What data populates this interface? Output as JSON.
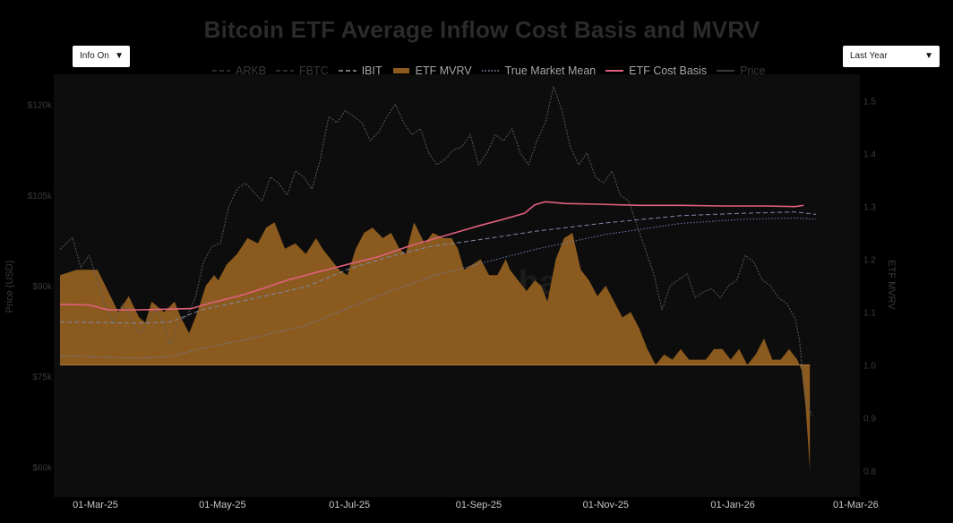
{
  "controls": {
    "info_label": "Info On",
    "range_label": "Last Year",
    "arrow": "▼"
  },
  "watermark": "checkonchain",
  "colors": {
    "mvrv_fill": "#8b5a1f",
    "cost_basis": "#e0607e",
    "true_market_mean": "#6b7fb0",
    "price": "#5a5a5a",
    "ibit": "#7e8aa8",
    "fbtc": "#444a58",
    "arkb": "#3a3e48",
    "plot_bg": "#0d0d0d",
    "tick": "#3a3a3a"
  },
  "chart_data": {
    "type": "line",
    "title": "Bitcoin ETF Average Inflow Cost Basis and MVRV",
    "x_ticks": [
      "01-Mar-25",
      "01-May-25",
      "01-Jul-25",
      "01-Sep-25",
      "01-Nov-25",
      "01-Jan-26",
      "01-Mar-26"
    ],
    "x_tick_days": [
      59,
      120,
      181,
      243,
      304,
      365,
      424
    ],
    "x_range_days": [
      39,
      426
    ],
    "y_left": {
      "label": "Price (USD)",
      "range": [
        55000,
        125000
      ],
      "ticks": [
        60000,
        75000,
        90000,
        105000,
        120000
      ],
      "tick_labels": [
        "$60k",
        "$75k",
        "$90k",
        "$105k",
        "$120k"
      ]
    },
    "y_right": {
      "label": "ETF MVRV",
      "range": [
        0.75,
        1.55
      ],
      "ticks": [
        0.8,
        0.9,
        1.0,
        1.1,
        1.2,
        1.3,
        1.4,
        1.5
      ]
    },
    "series": [
      {
        "name": "ARKB",
        "style": "dash"
      },
      {
        "name": "FBTC",
        "style": "dash"
      },
      {
        "name": "IBIT",
        "style": "dash",
        "x": [
          42,
          80,
          95,
          110,
          130,
          160,
          181,
          200,
          220,
          243,
          270,
          304,
          340,
          370,
          395,
          405
        ],
        "y": [
          84000,
          83800,
          84000,
          86000,
          87500,
          89800,
          92800,
          94800,
          96500,
          97600,
          99000,
          100400,
          101600,
          102000,
          102200,
          101800
        ]
      },
      {
        "name": "ETF MVRV",
        "style": "area",
        "x": [
          42,
          50,
          55,
          60,
          65,
          70,
          75,
          80,
          83,
          86,
          92,
          97,
          100,
          104,
          108,
          112,
          116,
          118,
          122,
          127,
          132,
          137,
          141,
          145,
          150,
          155,
          160,
          165,
          168,
          172,
          176,
          180,
          184,
          188,
          192,
          197,
          201,
          205,
          208,
          212,
          217,
          221,
          226,
          230,
          233,
          236,
          240,
          244,
          248,
          252,
          256,
          258,
          262,
          266,
          270,
          273,
          276,
          280,
          284,
          288,
          292,
          296,
          300,
          304,
          308,
          312,
          316,
          320,
          324,
          328,
          332,
          336,
          340,
          344,
          348,
          352,
          356,
          360,
          364,
          368,
          372,
          376,
          380,
          384,
          388,
          392,
          396,
          398,
          400,
          401,
          402
        ],
        "y": [
          1.17,
          1.18,
          1.18,
          1.18,
          1.14,
          1.1,
          1.13,
          1.09,
          1.08,
          1.12,
          1.1,
          1.12,
          1.09,
          1.06,
          1.1,
          1.15,
          1.17,
          1.16,
          1.19,
          1.21,
          1.24,
          1.23,
          1.26,
          1.27,
          1.22,
          1.23,
          1.21,
          1.24,
          1.22,
          1.2,
          1.18,
          1.17,
          1.22,
          1.25,
          1.26,
          1.24,
          1.25,
          1.22,
          1.21,
          1.27,
          1.23,
          1.25,
          1.24,
          1.24,
          1.22,
          1.18,
          1.19,
          1.2,
          1.17,
          1.17,
          1.2,
          1.18,
          1.16,
          1.14,
          1.16,
          1.15,
          1.12,
          1.2,
          1.24,
          1.25,
          1.18,
          1.16,
          1.13,
          1.15,
          1.12,
          1.09,
          1.1,
          1.07,
          1.03,
          1.0,
          1.02,
          1.01,
          1.03,
          1.01,
          1.01,
          1.01,
          1.03,
          1.03,
          1.01,
          1.03,
          1.0,
          1.02,
          1.05,
          1.01,
          1.01,
          1.03,
          1.01,
          0.99,
          0.92,
          0.86,
          0.8
        ]
      },
      {
        "name": "True Market Mean",
        "style": "dot",
        "x": [
          42,
          80,
          95,
          110,
          130,
          160,
          181,
          200,
          220,
          243,
          270,
          304,
          340,
          370,
          395,
          405
        ],
        "y": [
          78400,
          78000,
          78300,
          79600,
          81000,
          83400,
          86400,
          89000,
          91500,
          93600,
          96000,
          98500,
          100300,
          101000,
          101200,
          101000
        ]
      },
      {
        "name": "ETF Cost Basis",
        "style": "solid",
        "x": [
          42,
          56,
          65,
          80,
          92,
          105,
          115,
          128,
          140,
          152,
          165,
          181,
          195,
          210,
          228,
          243,
          255,
          265,
          270,
          275,
          285,
          300,
          320,
          340,
          360,
          380,
          395,
          399
        ],
        "y": [
          86900,
          86800,
          86000,
          86000,
          86100,
          86200,
          87200,
          88300,
          89600,
          91000,
          92200,
          93600,
          94800,
          96600,
          98400,
          99900,
          101000,
          102000,
          103400,
          103900,
          103600,
          103500,
          103300,
          103300,
          103200,
          103200,
          103100,
          103300
        ]
      },
      {
        "name": "Price",
        "style": "solid",
        "x": [
          42,
          48,
          52,
          56,
          60,
          64,
          68,
          72,
          76,
          80,
          84,
          88,
          92,
          95,
          99,
          103,
          107,
          111,
          115,
          119,
          123,
          127,
          131,
          135,
          139,
          143,
          147,
          151,
          155,
          159,
          163,
          167,
          171,
          175,
          179,
          183,
          187,
          191,
          195,
          199,
          203,
          207,
          211,
          215,
          219,
          223,
          227,
          231,
          235,
          239,
          243,
          247,
          251,
          255,
          259,
          263,
          267,
          271,
          275,
          279,
          283,
          287,
          291,
          295,
          299,
          303,
          307,
          311,
          315,
          319,
          323,
          327,
          331,
          335,
          339,
          343,
          347,
          351,
          355,
          359,
          363,
          367,
          371,
          375,
          379,
          383,
          387,
          391,
          395,
          397,
          399,
          401,
          403
        ],
        "y": [
          96000,
          98000,
          93000,
          95000,
          91000,
          86000,
          84000,
          87000,
          84500,
          82000,
          84000,
          86000,
          83500,
          80000,
          84000,
          85000,
          88000,
          94000,
          96500,
          97000,
          103000,
          106000,
          107000,
          105500,
          104000,
          108000,
          107000,
          105000,
          109000,
          108000,
          106000,
          111000,
          118000,
          117000,
          119000,
          118000,
          117000,
          114000,
          115500,
          118000,
          120000,
          117000,
          115000,
          116000,
          112000,
          110000,
          111000,
          112500,
          113000,
          115000,
          110000,
          112000,
          115000,
          114000,
          116000,
          112000,
          110000,
          114000,
          117000,
          123000,
          119000,
          113000,
          110000,
          112000,
          108000,
          107000,
          109000,
          105000,
          104000,
          100000,
          96000,
          92000,
          86000,
          90000,
          91000,
          92000,
          88000,
          89000,
          89500,
          88000,
          90000,
          91000,
          95000,
          94000,
          91000,
          90000,
          88000,
          87000,
          84500,
          81000,
          74000,
          70000,
          68500
        ]
      }
    ]
  }
}
